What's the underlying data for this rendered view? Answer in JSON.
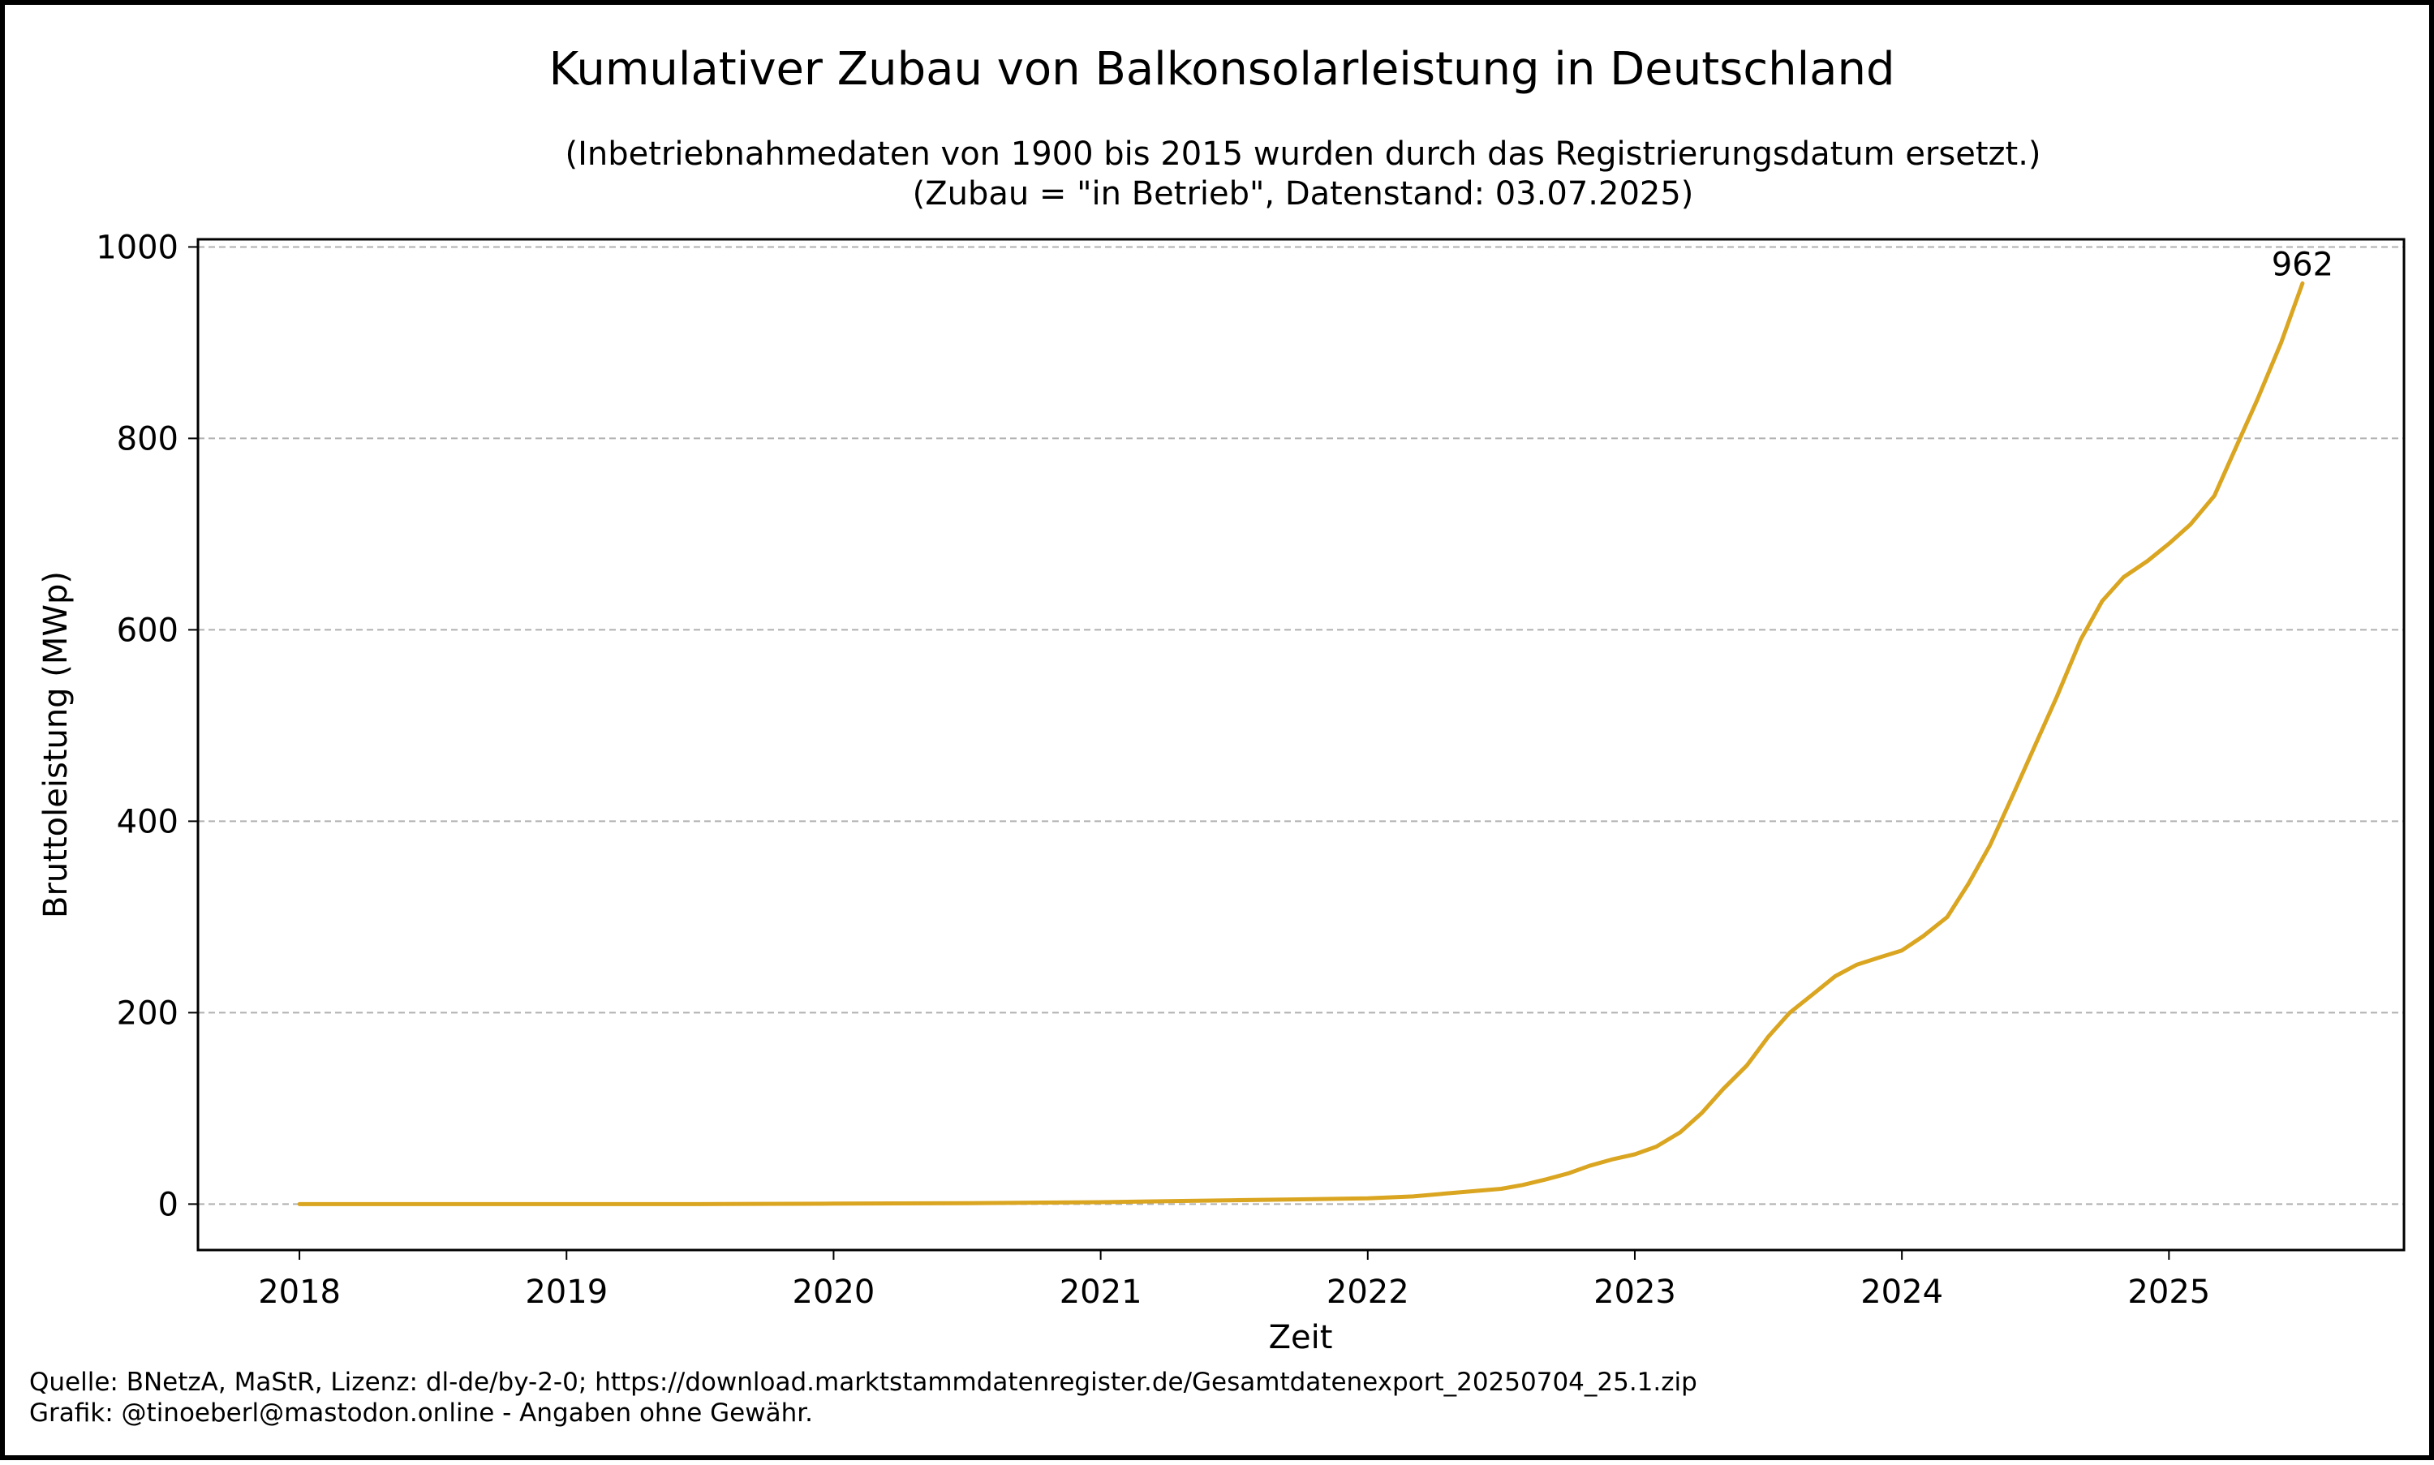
{
  "chart_data": {
    "type": "line",
    "title": "Kumulativer Zubau von Balkonsolarleistung in Deutschland",
    "subtitle_lines": [
      "(Inbetriebnahmedaten von 1900 bis 2015 wurden durch das Registrierungsdatum ersetzt.)",
      "(Zubau = \"in Betrieb\", Datenstand: 03.07.2025)"
    ],
    "xlabel": "Zeit",
    "ylabel": "Bruttoleistung (MWp)",
    "x_ticks": [
      "2018",
      "2019",
      "2020",
      "2021",
      "2022",
      "2023",
      "2024",
      "2025"
    ],
    "y_ticks": [
      "0",
      "200",
      "400",
      "600",
      "800",
      "1000"
    ],
    "xlim": [
      2017.62,
      2025.88
    ],
    "ylim": [
      -48,
      1008
    ],
    "grid": "horizontal-dashed",
    "line_color": "#DAA520",
    "series": [
      {
        "x": [
          2018.0,
          2018.5,
          2019.0,
          2019.5,
          2020.0,
          2020.5,
          2021.0,
          2021.25,
          2021.5,
          2021.75,
          2022.0,
          2022.17,
          2022.33,
          2022.5,
          2022.58,
          2022.67,
          2022.75,
          2022.83,
          2022.92,
          2023.0,
          2023.08,
          2023.17,
          2023.25,
          2023.33,
          2023.42,
          2023.5,
          2023.58,
          2023.67,
          2023.75,
          2023.83,
          2023.92,
          2024.0,
          2024.08,
          2024.17,
          2024.25,
          2024.33,
          2024.42,
          2024.5,
          2024.58,
          2024.67,
          2024.75,
          2024.83,
          2024.92,
          2025.0,
          2025.08,
          2025.17,
          2025.25,
          2025.33,
          2025.42,
          2025.5
        ],
        "y": [
          0,
          0,
          0,
          0,
          0.5,
          1,
          2,
          3,
          4,
          5,
          6,
          8,
          12,
          16,
          20,
          26,
          32,
          40,
          47,
          52,
          60,
          75,
          95,
          120,
          145,
          175,
          200,
          220,
          238,
          250,
          258,
          265,
          280,
          300,
          335,
          375,
          430,
          480,
          530,
          590,
          630,
          655,
          672,
          690,
          710,
          740,
          790,
          840,
          900,
          962
        ]
      }
    ],
    "annotations": [
      {
        "text": "962",
        "x": 2025.5,
        "y": 962
      }
    ]
  },
  "footer": {
    "line1": "Quelle: BNetzA, MaStR, Lizenz: dl-de/by-2-0; https://download.marktstammdatenregister.de/Gesamtdatenexport_20250704_25.1.zip",
    "line2": "Grafik: @tinoeberl@mastodon.online - Angaben ohne Gewähr."
  }
}
